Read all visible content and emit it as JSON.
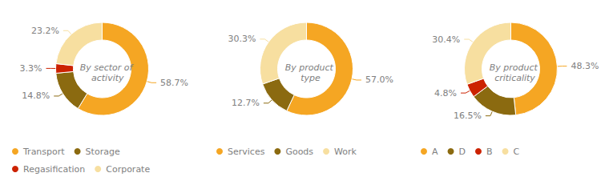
{
  "chart_data": [
    {
      "type": "pie",
      "title": "By sector of activity",
      "categories": [
        "Transport",
        "Storage",
        "Regasification",
        "Corporate"
      ],
      "values": [
        58.7,
        14.8,
        3.3,
        23.2
      ],
      "value_labels": [
        "58.7%",
        "14.8%",
        "3.3%",
        "23.2%"
      ],
      "colors": [
        "#F5A623",
        "#8B6A10",
        "#CC2200",
        "#F7DFA0"
      ],
      "legend": "bottom"
    },
    {
      "type": "pie",
      "title": "By product type",
      "categories": [
        "Services",
        "Goods",
        "Work"
      ],
      "values": [
        57.0,
        12.7,
        30.3
      ],
      "value_labels": [
        "57.0%",
        "12.7%",
        "30.3%"
      ],
      "colors": [
        "#F5A623",
        "#8B6A10",
        "#F7DFA0"
      ],
      "legend": "bottom"
    },
    {
      "type": "pie",
      "title": "By product criticality",
      "categories": [
        "A",
        "D",
        "B",
        "C"
      ],
      "values": [
        48.3,
        16.5,
        4.8,
        30.4
      ],
      "value_labels": [
        "48.3%",
        "16.5%",
        "4.8%",
        "30.4%"
      ],
      "colors": [
        "#F5A623",
        "#8B6A10",
        "#CC2200",
        "#F7DFA0"
      ],
      "legend": "bottom"
    }
  ]
}
